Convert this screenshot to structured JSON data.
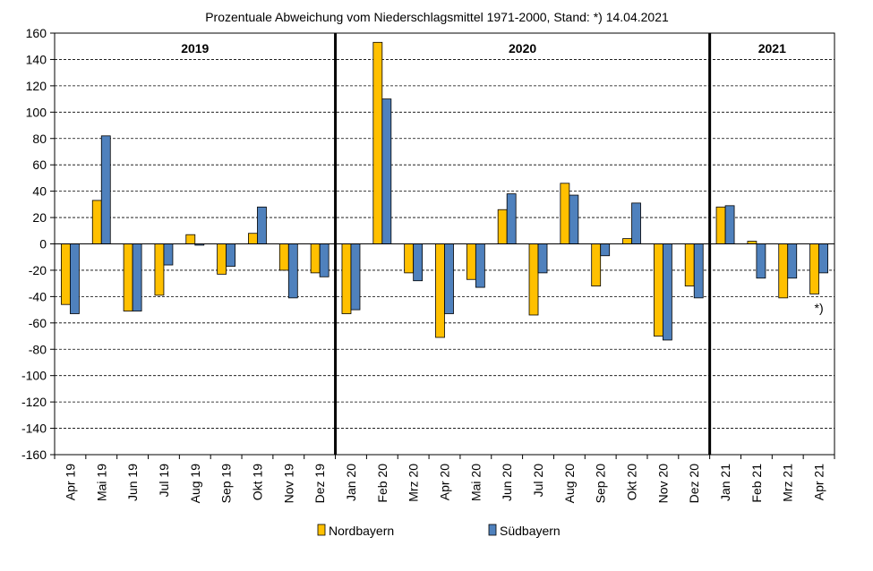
{
  "chart_data": {
    "type": "bar",
    "title": "Prozentuale Abweichung vom Niederschlagsmittel 1971-2000, Stand: *) 14.04.2021",
    "xlabel": "",
    "ylabel": "",
    "ylim": [
      -160,
      160
    ],
    "yticks": [
      160,
      140,
      120,
      100,
      80,
      60,
      40,
      20,
      0,
      -20,
      -40,
      -60,
      -80,
      -100,
      -120,
      -140,
      -160
    ],
    "grid": true,
    "legend_position": "bottom",
    "categories": [
      "Apr 19",
      "Mai 19",
      "Jun 19",
      "Jul 19",
      "Aug 19",
      "Sep 19",
      "Okt 19",
      "Nov 19",
      "Dez 19",
      "Jan 20",
      "Feb 20",
      "Mrz 20",
      "Apr 20",
      "Mai 20",
      "Jun 20",
      "Jul 20",
      "Aug 20",
      "Sep 20",
      "Okt 20",
      "Nov 20",
      "Dez 20",
      "Jan 21",
      "Feb 21",
      "Mrz 21",
      "Apr 21"
    ],
    "series": [
      {
        "name": "Nordbayern",
        "color": "#FFC000",
        "values": [
          -46,
          33,
          -51,
          -39,
          7,
          -23,
          8,
          -20,
          -22,
          -53,
          153,
          -22,
          -71,
          -27,
          26,
          -54,
          46,
          -32,
          4,
          -70,
          -32,
          28,
          2,
          -41,
          -38
        ]
      },
      {
        "name": "Südbayern",
        "color": "#4F81BD",
        "values": [
          -53,
          82,
          -51,
          -16,
          -1,
          -17,
          28,
          -41,
          -25,
          -50,
          110,
          -28,
          -53,
          -33,
          38,
          -22,
          37,
          -9,
          31,
          -73,
          -41,
          29,
          -26,
          -26,
          -22
        ]
      }
    ],
    "year_groups": [
      {
        "label": "2019",
        "start": 0,
        "end": 8
      },
      {
        "label": "2020",
        "start": 9,
        "end": 20
      },
      {
        "label": "2021",
        "start": 21,
        "end": 24
      }
    ],
    "annotations": [
      {
        "text": "*)",
        "category_index": 24
      }
    ]
  }
}
